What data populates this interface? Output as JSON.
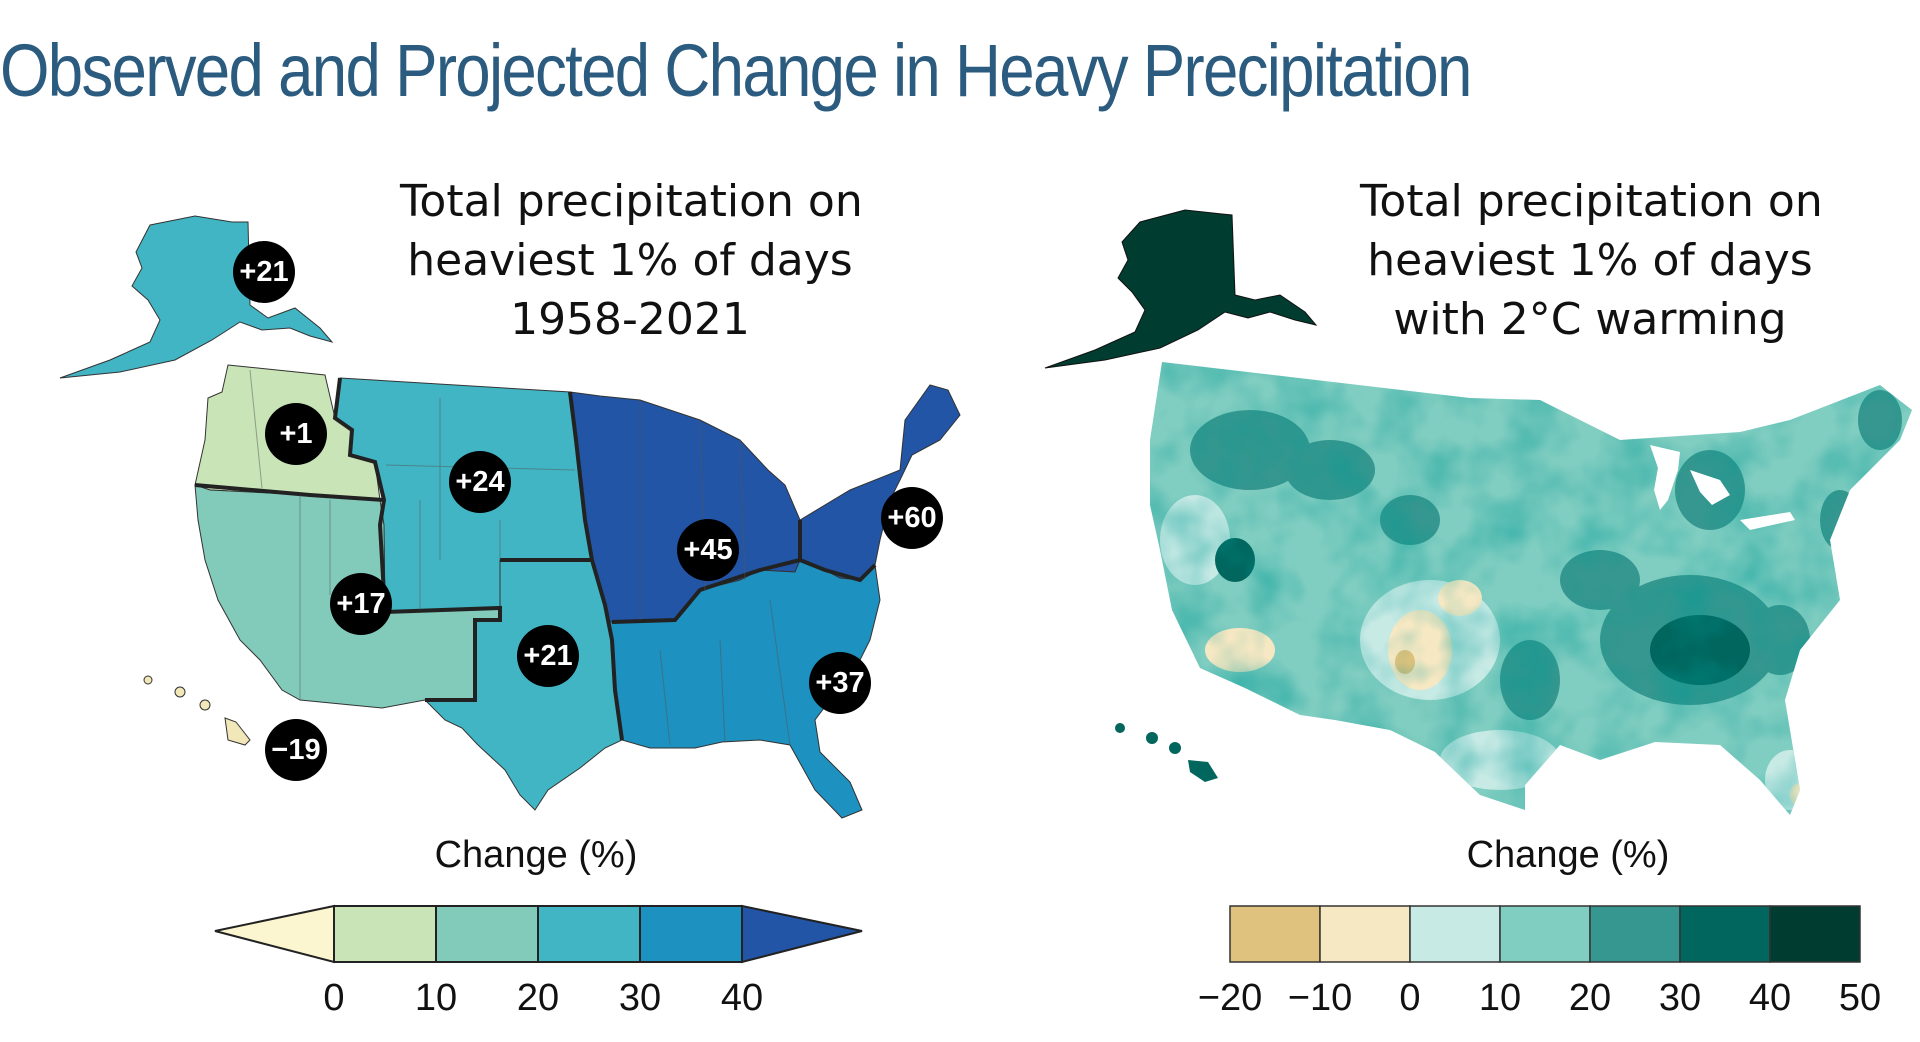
{
  "title": "Observed and Projected Change in Heavy Precipitation",
  "left_panel": {
    "title_lines": [
      "Total precipitation on",
      "heaviest 1% of days",
      "1958-2021"
    ],
    "legend_label": "Change (%)",
    "legend_ticks": [
      "0",
      "10",
      "20",
      "30",
      "40"
    ],
    "legend_colors": [
      "#fbf6d0",
      "#c9e4b6",
      "#82cbbb",
      "#41b5c4",
      "#1d91c0",
      "#2255a5"
    ],
    "regions": [
      {
        "name": "Alaska",
        "value": "+21",
        "color": "#41b5c4"
      },
      {
        "name": "Northwest",
        "value": "+1",
        "color": "#c9e4b6"
      },
      {
        "name": "Northern Great Plains",
        "value": "+24",
        "color": "#41b5c4"
      },
      {
        "name": "Southwest",
        "value": "+17",
        "color": "#82cbbb"
      },
      {
        "name": "Southern Great Plains",
        "value": "+21",
        "color": "#41b5c4"
      },
      {
        "name": "Midwest",
        "value": "+45",
        "color": "#2255a5"
      },
      {
        "name": "Northeast",
        "value": "+60",
        "color": "#2255a5"
      },
      {
        "name": "Southeast",
        "value": "+37",
        "color": "#1d91c0"
      },
      {
        "name": "Hawaii",
        "value": "−19",
        "color": "#f1e7b8"
      }
    ]
  },
  "right_panel": {
    "title_lines": [
      "Total precipitation on",
      "heaviest 1% of days",
      "with 2°C warming"
    ],
    "legend_label": "Change (%)",
    "legend_ticks": [
      "−20",
      "−10",
      "0",
      "10",
      "20",
      "30",
      "40",
      "50"
    ],
    "legend_colors": [
      "#dfc27d",
      "#f6e8c3",
      "#c7eae5",
      "#80cdc1",
      "#35978f",
      "#01665e",
      "#003c30"
    ]
  }
}
